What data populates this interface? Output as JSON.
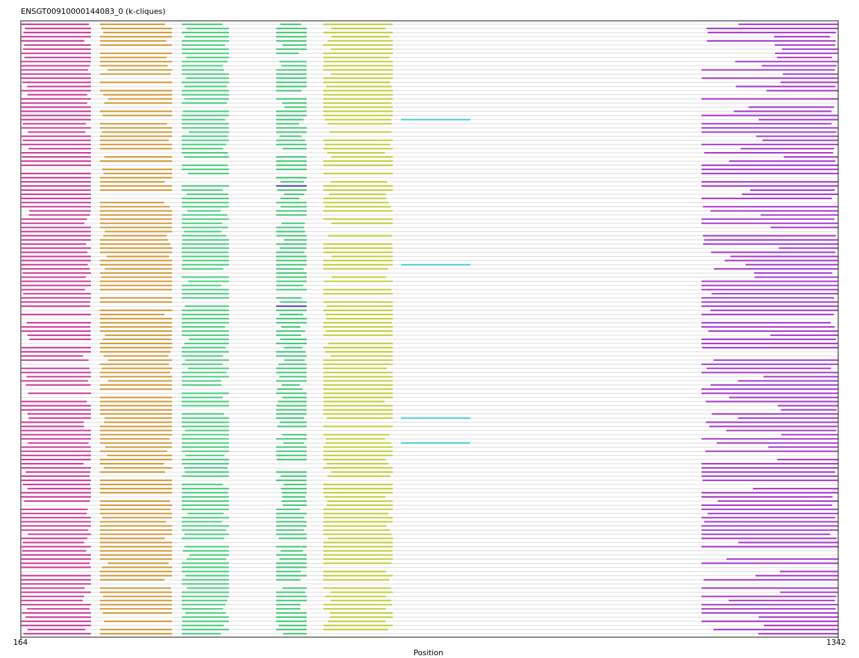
{
  "chart_data": {
    "type": "msa-overview",
    "title": "ENSGT00910000144083_0 (k-cliques)",
    "xlabel": "Position",
    "xlim": [
      164,
      1342
    ],
    "tick_labels": [
      "164",
      "1342"
    ],
    "row_count": 148,
    "gap_color": "#dcdcdc",
    "blocks": [
      {
        "name": "clique-1",
        "color": "#cc3f9a",
        "start": 165,
        "end": 265
      },
      {
        "name": "clique-2",
        "color": "#d49a3e",
        "start": 278,
        "end": 382
      },
      {
        "name": "clique-3",
        "color": "#4ccf7f",
        "start": 396,
        "end": 464
      },
      {
        "name": "clique-4",
        "color": "#46c978",
        "start": 532,
        "end": 576
      },
      {
        "name": "clique-5",
        "color": "#c2cf3e",
        "start": 600,
        "end": 700
      },
      {
        "name": "clique-6",
        "color": "#a93ccd",
        "start": 1145,
        "end": 1342
      }
    ],
    "rare_blocks": [
      {
        "name": "cyan-segment",
        "color": "#3fc9d0",
        "start": 712,
        "end": 812,
        "rows": [
          23,
          58,
          95,
          101
        ]
      },
      {
        "name": "indigo-segment",
        "color": "#5a3cc8",
        "start": 532,
        "end": 576,
        "rows": [
          39,
          68
        ]
      }
    ]
  }
}
